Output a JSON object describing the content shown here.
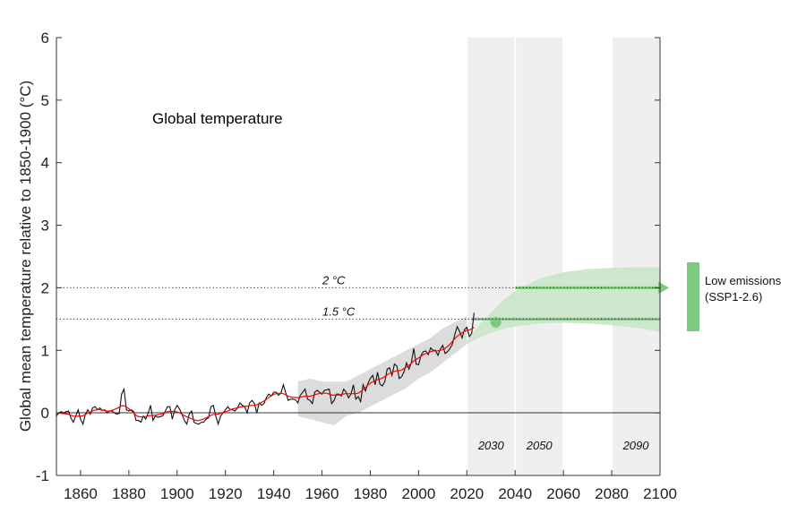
{
  "chart_data": {
    "type": "line",
    "title": "Global temperature",
    "xlabel": "",
    "ylabel": "Global mean temperature relative to 1850-1900 (°C)",
    "xlim": [
      1850,
      2100
    ],
    "ylim": [
      -1,
      6
    ],
    "xticks": [
      1860,
      1880,
      1900,
      1920,
      1940,
      1960,
      1980,
      2000,
      2020,
      2040,
      2060,
      2080,
      2100
    ],
    "yticks": [
      -1,
      0,
      1,
      2,
      3,
      4,
      5,
      6
    ],
    "grid": false,
    "observed": {
      "start_year": 1850,
      "color": "#000000",
      "values": [
        -0.05,
        0.0,
        0.02,
        0.0,
        0.02,
        0.03,
        -0.08,
        -0.15,
        -0.05,
        0.05,
        -0.1,
        -0.18,
        -0.02,
        0.05,
        -0.02,
        0.08,
        0.1,
        0.05,
        0.08,
        0.04,
        0.05,
        0.0,
        0.03,
        0.03,
        0.0,
        -0.02,
        -0.01,
        0.3,
        0.38,
        0.05,
        0.03,
        0.05,
        0.02,
        -0.12,
        -0.12,
        -0.15,
        -0.05,
        -0.1,
        0.0,
        0.12,
        -0.12,
        -0.05,
        -0.07,
        -0.06,
        -0.05,
        0.02,
        0.1,
        0.1,
        -0.1,
        0.05,
        0.12,
        0.06,
        -0.02,
        -0.12,
        -0.18,
        -0.02,
        0.03,
        -0.15,
        -0.17,
        -0.18,
        -0.15,
        -0.15,
        -0.1,
        -0.08,
        0.1,
        0.12,
        -0.05,
        -0.18,
        -0.05,
        0.0,
        0.05,
        0.1,
        0.05,
        0.05,
        0.03,
        0.08,
        0.16,
        0.12,
        0.1,
        0.0,
        0.16,
        0.2,
        0.15,
        0.0,
        0.16,
        0.12,
        0.15,
        0.25,
        0.3,
        0.27,
        0.33,
        0.33,
        0.28,
        0.32,
        0.45,
        0.32,
        0.2,
        0.22,
        0.22,
        0.21,
        0.16,
        0.28,
        0.33,
        0.38,
        0.22,
        0.2,
        0.15,
        0.33,
        0.36,
        0.33,
        0.3,
        0.36,
        0.37,
        0.38,
        0.15,
        0.2,
        0.3,
        0.3,
        0.27,
        0.38,
        0.33,
        0.24,
        0.3,
        0.45,
        0.22,
        0.26,
        0.18,
        0.45,
        0.35,
        0.47,
        0.55,
        0.6,
        0.45,
        0.65,
        0.46,
        0.43,
        0.5,
        0.7,
        0.72,
        0.6,
        0.78,
        0.75,
        0.55,
        0.58,
        0.66,
        0.8,
        0.7,
        0.8,
        1.03,
        0.78,
        0.77,
        0.92,
        0.98,
        0.99,
        0.93,
        1.04,
        1.0,
        1.0,
        0.92,
        1.02,
        1.08,
        0.95,
        0.98,
        1.03,
        1.1,
        1.25,
        1.38,
        1.3,
        1.2,
        1.33,
        1.37,
        1.22,
        1.27,
        1.6
      ]
    },
    "smoothed_color": "#ff0000",
    "historical_range": {
      "color": "#dcdcdc",
      "years": [
        1950,
        1955,
        1960,
        1965,
        1970,
        1975,
        1980,
        1985,
        1990,
        1995,
        2000,
        2005,
        2010,
        2015,
        2020
      ],
      "lower": [
        -0.05,
        -0.1,
        -0.15,
        -0.2,
        -0.05,
        0.0,
        0.1,
        0.2,
        0.3,
        0.4,
        0.55,
        0.65,
        0.8,
        0.95,
        1.1
      ],
      "upper": [
        0.5,
        0.55,
        0.5,
        0.5,
        0.5,
        0.6,
        0.7,
        0.8,
        0.9,
        1.0,
        1.1,
        1.2,
        1.35,
        1.45,
        1.55
      ]
    },
    "projection": {
      "name": "Low emissions (SSP1-2.6)",
      "legend_line1": "Low emissions",
      "legend_line2": "(SSP1-2.6)",
      "legend_placement": "right-outside",
      "color": "#7dc97d",
      "band_color": "#c8e6c8",
      "years": [
        2020,
        2025,
        2030,
        2035,
        2040,
        2050,
        2060,
        2070,
        2080,
        2090,
        2100
      ],
      "lower": [
        1.1,
        1.2,
        1.28,
        1.34,
        1.38,
        1.43,
        1.44,
        1.43,
        1.4,
        1.36,
        1.3
      ],
      "upper": [
        1.15,
        1.4,
        1.6,
        1.8,
        1.95,
        2.15,
        2.25,
        2.3,
        2.32,
        2.33,
        2.33
      ],
      "crossing_1_5": {
        "year": 2032,
        "value": 1.45
      },
      "level_1_5_line": {
        "from": 2022,
        "to": 2100,
        "value": 1.5
      },
      "level_2_arrow": {
        "from": 2040,
        "to": 2100,
        "value": 2.0
      }
    },
    "thresholds": [
      {
        "label": "2 °C",
        "value": 2.0
      },
      {
        "label": "1.5 °C",
        "value": 1.5
      }
    ],
    "highlight_periods": [
      {
        "label": "2030",
        "from": 2020,
        "to": 2040
      },
      {
        "label": "2050",
        "from": 2040,
        "to": 2060
      },
      {
        "label": "2090",
        "from": 2080,
        "to": 2100
      }
    ],
    "band_fill": "#efefef"
  }
}
